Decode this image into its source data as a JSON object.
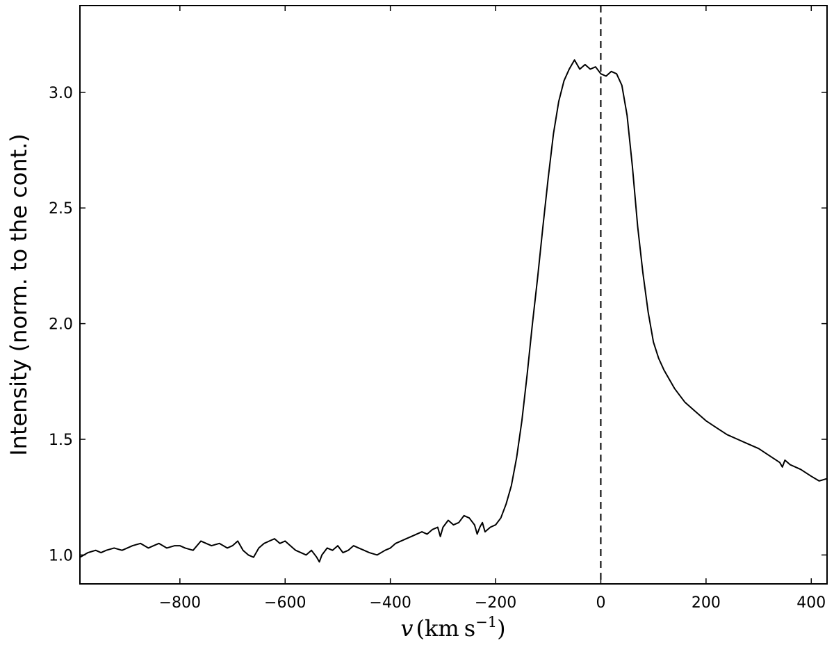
{
  "chart_data": {
    "type": "line",
    "title": "",
    "xlabel": {
      "var": "v",
      "unit_open": "(",
      "unit_km": "km",
      "unit_s": "s",
      "unit_exp": "−1",
      "unit_close": ")"
    },
    "ylabel": "Intensity (norm. to the cont.)",
    "xlim": [
      -990,
      430
    ],
    "ylim": [
      0.875,
      3.375
    ],
    "xticks": [
      -800,
      -600,
      -400,
      -200,
      0,
      200,
      400
    ],
    "xtick_labels": [
      "−800",
      "−600",
      "−400",
      "−200",
      "0",
      "200",
      "400"
    ],
    "yticks": [
      1.0,
      1.5,
      2.0,
      2.5,
      3.0
    ],
    "ytick_labels": [
      "1.0",
      "1.5",
      "2.0",
      "2.5",
      "3.0"
    ],
    "grid": false,
    "reference_line": {
      "x": 0,
      "style": "dashed"
    },
    "series": [
      {
        "color": "#000000",
        "x": [
          -990,
          -975,
          -960,
          -950,
          -940,
          -925,
          -910,
          -900,
          -890,
          -875,
          -860,
          -850,
          -840,
          -825,
          -810,
          -800,
          -790,
          -775,
          -760,
          -750,
          -740,
          -725,
          -710,
          -700,
          -690,
          -680,
          -670,
          -660,
          -650,
          -640,
          -630,
          -620,
          -610,
          -600,
          -590,
          -580,
          -570,
          -560,
          -550,
          -540,
          -535,
          -530,
          -520,
          -510,
          -500,
          -490,
          -480,
          -470,
          -460,
          -450,
          -440,
          -425,
          -410,
          -400,
          -390,
          -380,
          -370,
          -360,
          -350,
          -340,
          -330,
          -320,
          -310,
          -305,
          -300,
          -290,
          -280,
          -270,
          -260,
          -250,
          -240,
          -235,
          -230,
          -225,
          -220,
          -210,
          -200,
          -190,
          -180,
          -170,
          -160,
          -150,
          -140,
          -130,
          -120,
          -110,
          -100,
          -90,
          -80,
          -70,
          -60,
          -50,
          -40,
          -30,
          -20,
          -10,
          0,
          10,
          20,
          30,
          40,
          50,
          60,
          70,
          80,
          90,
          100,
          110,
          120,
          130,
          140,
          150,
          160,
          180,
          200,
          220,
          240,
          260,
          280,
          300,
          320,
          340,
          345,
          350,
          360,
          380,
          400,
          415,
          430
        ],
        "y": [
          0.99,
          1.01,
          1.02,
          1.01,
          1.02,
          1.03,
          1.02,
          1.03,
          1.04,
          1.05,
          1.03,
          1.04,
          1.05,
          1.03,
          1.04,
          1.04,
          1.03,
          1.02,
          1.06,
          1.05,
          1.04,
          1.05,
          1.03,
          1.04,
          1.06,
          1.02,
          1.0,
          0.99,
          1.03,
          1.05,
          1.06,
          1.07,
          1.05,
          1.06,
          1.04,
          1.02,
          1.01,
          1.0,
          1.02,
          0.99,
          0.97,
          1.0,
          1.03,
          1.02,
          1.04,
          1.01,
          1.02,
          1.04,
          1.03,
          1.02,
          1.01,
          1.0,
          1.02,
          1.03,
          1.05,
          1.06,
          1.07,
          1.08,
          1.09,
          1.1,
          1.09,
          1.11,
          1.12,
          1.08,
          1.12,
          1.15,
          1.13,
          1.14,
          1.17,
          1.16,
          1.13,
          1.09,
          1.12,
          1.14,
          1.1,
          1.12,
          1.13,
          1.16,
          1.22,
          1.3,
          1.42,
          1.58,
          1.78,
          2.0,
          2.2,
          2.42,
          2.63,
          2.82,
          2.96,
          3.05,
          3.1,
          3.14,
          3.1,
          3.12,
          3.1,
          3.11,
          3.08,
          3.07,
          3.09,
          3.08,
          3.03,
          2.9,
          2.68,
          2.42,
          2.22,
          2.05,
          1.92,
          1.85,
          1.8,
          1.76,
          1.72,
          1.69,
          1.66,
          1.62,
          1.58,
          1.55,
          1.52,
          1.5,
          1.48,
          1.46,
          1.43,
          1.4,
          1.38,
          1.41,
          1.39,
          1.37,
          1.34,
          1.32,
          1.33
        ]
      }
    ]
  }
}
